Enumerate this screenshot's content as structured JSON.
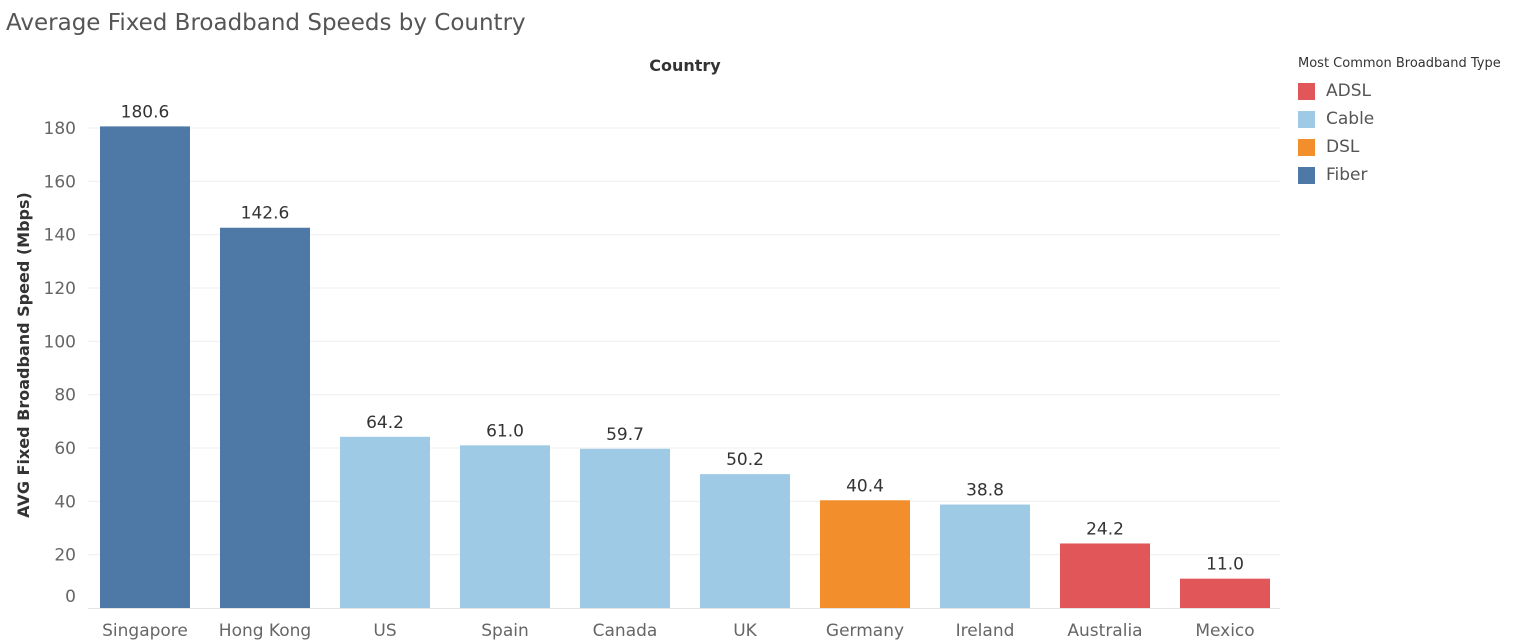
{
  "chart_data": {
    "type": "bar",
    "title": "Average Fixed Broadband Speeds by Country",
    "xlabel": "Country",
    "ylabel": "AVG Fixed Broadband Speed (Mbps)",
    "ylim": [
      0,
      185
    ],
    "yticks": [
      0,
      20,
      40,
      60,
      80,
      100,
      120,
      140,
      160,
      180
    ],
    "grid": true,
    "legend_position": "top-right",
    "legend_title": "Most Common Broadband Type",
    "legend": [
      {
        "name": "ADSL",
        "color": "#e15759"
      },
      {
        "name": "Cable",
        "color": "#9fcae6"
      },
      {
        "name": "DSL",
        "color": "#f28e2b"
      },
      {
        "name": "Fiber",
        "color": "#4e79a7"
      }
    ],
    "categories": [
      "Singapore",
      "Hong Kong",
      "US",
      "Spain",
      "Canada",
      "UK",
      "Germany",
      "Ireland",
      "Australia",
      "Mexico"
    ],
    "values": [
      180.6,
      142.6,
      64.2,
      61.0,
      59.7,
      50.2,
      40.4,
      38.8,
      24.2,
      11.0
    ],
    "value_labels": [
      "180.6",
      "142.6",
      "64.2",
      "61.0",
      "59.7",
      "50.2",
      "40.4",
      "38.8",
      "24.2",
      "11.0"
    ],
    "types": [
      "Fiber",
      "Fiber",
      "Cable",
      "Cable",
      "Cable",
      "Cable",
      "DSL",
      "Cable",
      "ADSL",
      "ADSL"
    ]
  }
}
